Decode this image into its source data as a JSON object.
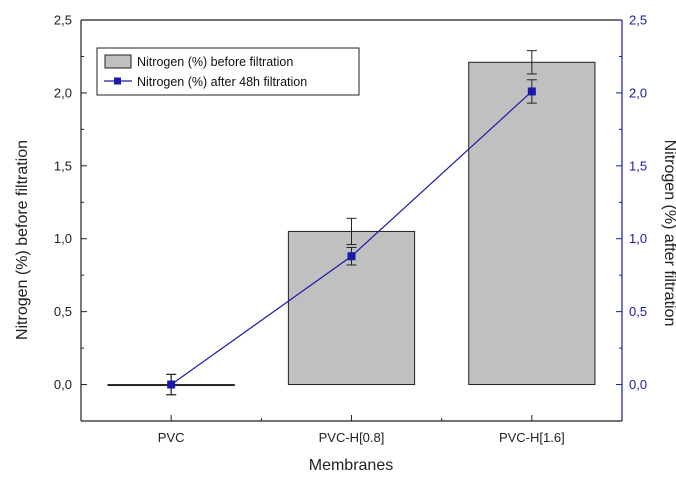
{
  "chart_data": {
    "type": "bar+line",
    "categories": [
      "PVC",
      "PVC-H[0.8]",
      "PVC-H[1.6]"
    ],
    "series": [
      {
        "name": "Nitrogen (%) before filtration",
        "type": "bar",
        "axis": "left",
        "values": [
          0.0,
          1.05,
          2.21
        ],
        "errors": [
          0.07,
          0.09,
          0.08
        ],
        "color": "#c0c0c0"
      },
      {
        "name": "Nitrogen (%) after 48h filtration",
        "type": "line",
        "axis": "right",
        "values": [
          0.0,
          0.88,
          2.01
        ],
        "errors": [
          0.07,
          0.06,
          0.08
        ],
        "color": "#1a1aa8"
      }
    ],
    "xlabel": "Membranes",
    "ylabel": "Nitrogen (%) before filtration",
    "ylabel_right": "Nitrogen (%) after filtration",
    "ylim": [
      -0.25,
      2.5
    ],
    "ylim_right": [
      -0.25,
      2.5
    ],
    "yticks": [
      "0,0",
      "0,5",
      "1,0",
      "1,5",
      "2,0",
      "2,5"
    ],
    "ytick_values": [
      0,
      0.5,
      1.0,
      1.5,
      2.0,
      2.5
    ],
    "legend": "top-left",
    "grid": false,
    "axis_color": "#222222",
    "right_axis_color": "#1a1aa8"
  }
}
